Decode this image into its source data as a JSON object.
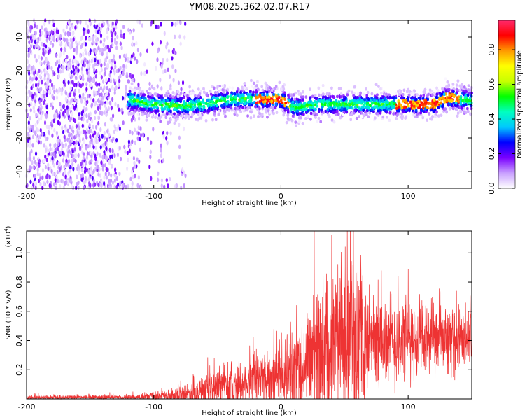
{
  "title": "YM08.2025.362.02.07.R17",
  "chart_data": [
    {
      "type": "heatmap",
      "xlabel": "Height of straight line (km)",
      "ylabel": "Frequency (Hz)",
      "xlim": [
        -200,
        150
      ],
      "ylim": [
        -50,
        50
      ],
      "xticks": [
        -200,
        -100,
        0,
        100
      ],
      "yticks": [
        -40,
        -20,
        0,
        20,
        40
      ],
      "colorbar": {
        "label": "Normalized spectral amplitude",
        "range": [
          0,
          0.97
        ],
        "ticks": [
          0.0,
          0.2,
          0.4,
          0.6,
          0.8
        ],
        "colors": [
          "#ffffff",
          "#c9a0ff",
          "#7a00ff",
          "#0000ff",
          "#00c8ff",
          "#00ffc0",
          "#00ff00",
          "#c8ff00",
          "#ffff00",
          "#ff9900",
          "#ff0000",
          "#ff2a6d"
        ]
      },
      "description_points": {
        "noise_region_end_x": -85,
        "signal_band_start_x": -120,
        "signal_center_track": [
          [
            -120,
            3
          ],
          [
            -100,
            0
          ],
          [
            -80,
            -1
          ],
          [
            -60,
            0
          ],
          [
            -40,
            3
          ],
          [
            -20,
            3
          ],
          [
            0,
            3
          ],
          [
            10,
            -2
          ],
          [
            30,
            0
          ],
          [
            60,
            0
          ],
          [
            90,
            0
          ],
          [
            100,
            0
          ],
          [
            120,
            0
          ],
          [
            130,
            4
          ],
          [
            150,
            2
          ]
        ],
        "high_amplitude_segments": [
          [
            -20,
            6
          ],
          [
            90,
            140
          ]
        ]
      }
    },
    {
      "type": "line",
      "xlabel": "Height of straight line (km)",
      "ylabel": "SNR (10 * v/v)",
      "yscale_label": "(x10",
      "yscale_exp": "4",
      "xlim": [
        -200,
        150
      ],
      "ylim": [
        0,
        1.15
      ],
      "xticks": [
        -200,
        -100,
        0,
        100
      ],
      "yticks": [
        0.2,
        0.4,
        0.6,
        0.8,
        1.0
      ],
      "color": "#ee3333",
      "envelope": {
        "x": [
          -200,
          -180,
          -160,
          -140,
          -120,
          -110,
          -100,
          -90,
          -80,
          -70,
          -60,
          -50,
          -40,
          -30,
          -20,
          -10,
          0,
          10,
          20,
          25,
          30,
          40,
          50,
          55,
          60,
          70,
          80,
          90,
          100,
          110,
          120,
          130,
          140,
          150
        ],
        "base": [
          0.01,
          0.01,
          0.01,
          0.01,
          0.01,
          0.01,
          0.02,
          0.02,
          0.03,
          0.04,
          0.05,
          0.07,
          0.09,
          0.11,
          0.13,
          0.15,
          0.17,
          0.2,
          0.24,
          0.3,
          0.36,
          0.4,
          0.42,
          0.42,
          0.42,
          0.4,
          0.4,
          0.4,
          0.4,
          0.38,
          0.4,
          0.4,
          0.4,
          0.4
        ],
        "amp": [
          0.02,
          0.02,
          0.02,
          0.02,
          0.02,
          0.03,
          0.04,
          0.05,
          0.07,
          0.1,
          0.13,
          0.16,
          0.2,
          0.22,
          0.25,
          0.28,
          0.32,
          0.35,
          0.4,
          0.5,
          0.62,
          0.6,
          0.7,
          0.75,
          0.6,
          0.45,
          0.42,
          0.4,
          0.35,
          0.32,
          0.3,
          0.28,
          0.28,
          0.3
        ]
      }
    }
  ]
}
